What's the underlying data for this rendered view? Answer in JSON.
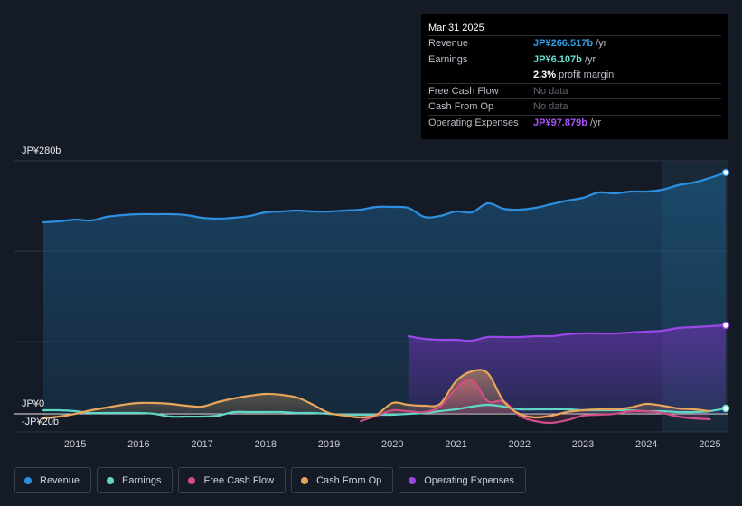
{
  "tooltip": {
    "date": "Mar 31 2025",
    "rows": [
      {
        "label": "Revenue",
        "value": "JP¥266.517b",
        "unit": "/yr",
        "color": "#2fa0e8"
      },
      {
        "label": "Earnings",
        "value": "JP¥6.107b",
        "unit": "/yr",
        "color": "#6be0d0"
      },
      {
        "label": "",
        "value": "2.3%",
        "unit": "profit margin",
        "color": "#ffffff"
      },
      {
        "label": "Free Cash Flow",
        "nodata": "No data"
      },
      {
        "label": "Cash From Op",
        "nodata": "No data"
      },
      {
        "label": "Operating Expenses",
        "value": "JP¥97.879b",
        "unit": "/yr",
        "color": "#a855f7"
      }
    ]
  },
  "legend": [
    {
      "label": "Revenue",
      "color": "#2d8fe0"
    },
    {
      "label": "Earnings",
      "color": "#5fd8c8"
    },
    {
      "label": "Free Cash Flow",
      "color": "#d14d86"
    },
    {
      "label": "Cash From Op",
      "color": "#e8a65a"
    },
    {
      "label": "Operating Expenses",
      "color": "#9c47e8"
    }
  ],
  "chart_data": {
    "type": "line",
    "title": "",
    "units": "JP¥ billions",
    "y_tick_labels": [
      "JP¥280b",
      "JP¥0",
      "-JP¥20b"
    ],
    "ylim": [
      -20,
      280
    ],
    "xlim": [
      2014.4,
      2025.25
    ],
    "x_tick_labels": [
      "2015",
      "2016",
      "2017",
      "2018",
      "2019",
      "2020",
      "2021",
      "2022",
      "2023",
      "2024",
      "2025"
    ],
    "x_ticks": [
      2015,
      2016,
      2017,
      2018,
      2019,
      2020,
      2021,
      2022,
      2023,
      2024,
      2025
    ],
    "forecast_start": 2024.25,
    "series": [
      {
        "name": "Revenue",
        "color": "#2d8fe0",
        "fill": true,
        "end_marker": true,
        "x": [
          2014.5,
          2014.75,
          2015,
          2015.25,
          2015.5,
          2015.75,
          2016,
          2016.25,
          2016.5,
          2016.75,
          2017,
          2017.25,
          2017.5,
          2017.75,
          2018,
          2018.25,
          2018.5,
          2018.75,
          2019,
          2019.25,
          2019.5,
          2019.75,
          2020,
          2020.25,
          2020.5,
          2020.75,
          2021,
          2021.25,
          2021.5,
          2021.75,
          2022,
          2022.25,
          2022.5,
          2022.75,
          2023,
          2023.25,
          2023.5,
          2023.75,
          2024,
          2024.25,
          2024.5,
          2024.75,
          2025,
          2025.25
        ],
        "y": [
          212,
          213,
          215,
          214,
          218,
          220,
          221,
          221,
          221,
          220,
          217,
          216,
          217,
          219,
          223,
          224,
          225,
          224,
          224,
          225,
          226,
          229,
          229,
          228,
          218,
          219,
          224,
          223,
          233,
          227,
          226,
          228,
          232,
          236,
          239,
          245,
          244,
          246,
          246,
          248,
          253,
          256,
          261,
          267
        ]
      },
      {
        "name": "Operating Expenses",
        "color": "#9c47e8",
        "fill": true,
        "end_marker": true,
        "x": [
          2020.25,
          2020.5,
          2020.75,
          2021,
          2021.25,
          2021.5,
          2021.75,
          2022,
          2022.25,
          2022.5,
          2022.75,
          2023,
          2023.25,
          2023.5,
          2023.75,
          2024,
          2024.25,
          2024.5,
          2024.75,
          2025,
          2025.25
        ],
        "y": [
          86,
          83,
          82,
          82,
          81,
          85,
          85,
          85,
          86,
          86,
          88,
          89,
          89,
          89,
          90,
          91,
          92,
          95,
          96,
          97,
          98
        ]
      },
      {
        "name": "Earnings",
        "color": "#5fd8c8",
        "fill": false,
        "end_marker": true,
        "x": [
          2014.5,
          2014.75,
          2015,
          2015.25,
          2015.5,
          2015.75,
          2016,
          2016.25,
          2016.5,
          2016.75,
          2017,
          2017.25,
          2017.5,
          2017.75,
          2018,
          2018.25,
          2018.5,
          2018.75,
          2019,
          2019.25,
          2019.5,
          2019.75,
          2020,
          2020.25,
          2020.5,
          2020.75,
          2021,
          2021.25,
          2021.5,
          2021.75,
          2022,
          2022.25,
          2022.5,
          2022.75,
          2023,
          2023.25,
          2023.5,
          2023.75,
          2024,
          2024.25,
          2024.5,
          2024.75,
          2025,
          2025.25
        ],
        "y": [
          4,
          4,
          3,
          1,
          1,
          1,
          1,
          0,
          -3,
          -3,
          -3,
          -2,
          2,
          2,
          2,
          2,
          1,
          1,
          0,
          -1,
          -1,
          -1,
          -1,
          0,
          1,
          3,
          5,
          8,
          10,
          8,
          5,
          5,
          5,
          5,
          4,
          4,
          4,
          4,
          3,
          3,
          2,
          2,
          3,
          6
        ]
      },
      {
        "name": "Free Cash Flow",
        "color": "#d14d86",
        "fill": true,
        "end_marker": false,
        "x": [
          2019.5,
          2019.75,
          2020,
          2020.25,
          2020.5,
          2020.75,
          2021,
          2021.25,
          2021.5,
          2021.75,
          2022,
          2022.25,
          2022.5,
          2022.75,
          2023,
          2023.25,
          2023.5,
          2023.75,
          2024,
          2024.25,
          2024.5,
          2024.75,
          2025
        ],
        "y": [
          -8,
          -2,
          4,
          3,
          2,
          8,
          28,
          38,
          14,
          14,
          -2,
          -8,
          -10,
          -7,
          -2,
          -1,
          0,
          3,
          3,
          1,
          -3,
          -5,
          -6
        ]
      },
      {
        "name": "Cash From Op",
        "color": "#e8a65a",
        "fill": true,
        "end_marker": false,
        "x": [
          2014.5,
          2014.75,
          2015,
          2015.25,
          2015.5,
          2015.75,
          2016,
          2016.25,
          2016.5,
          2016.75,
          2017,
          2017.25,
          2017.5,
          2017.75,
          2018,
          2018.25,
          2018.5,
          2018.75,
          2019,
          2019.25,
          2019.5,
          2019.75,
          2020,
          2020.25,
          2020.5,
          2020.75,
          2021,
          2021.25,
          2021.5,
          2021.75,
          2022,
          2022.25,
          2022.5,
          2022.75,
          2023,
          2023.25,
          2023.5,
          2023.75,
          2024,
          2024.25,
          2024.5,
          2024.75,
          2025
        ],
        "y": [
          -5,
          -3,
          0,
          4,
          7,
          10,
          12,
          12,
          11,
          9,
          8,
          13,
          17,
          20,
          22,
          21,
          18,
          10,
          1,
          -2,
          -4,
          -1,
          12,
          10,
          9,
          11,
          36,
          47,
          45,
          14,
          0,
          -4,
          -2,
          2,
          4,
          5,
          5,
          7,
          11,
          9,
          6,
          5,
          3
        ]
      }
    ]
  }
}
